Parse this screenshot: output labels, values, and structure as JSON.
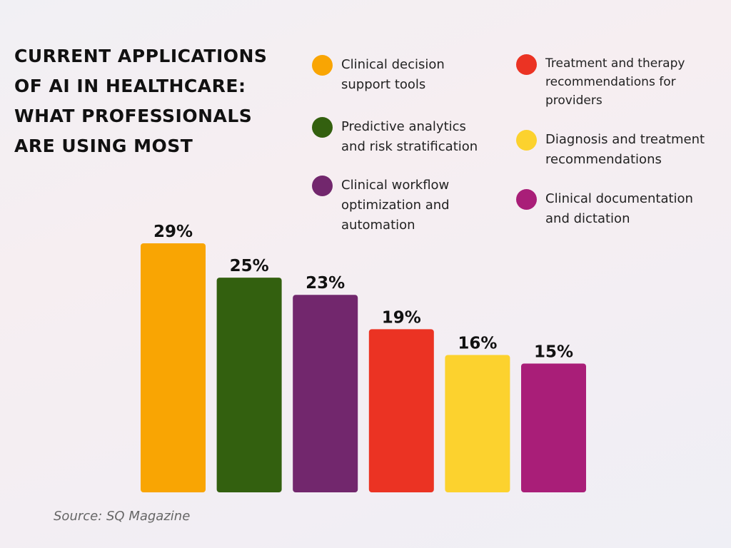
{
  "title": "Current Applications of AI in Healthcare: What Professionals Are Using Most",
  "source": "Source: SQ Magazine",
  "legend": [
    {
      "label": "Clinical decision\nsupport tools",
      "color": "#F9A503"
    },
    {
      "label": "Predictive analytics\nand risk stratification",
      "color": "#33600F"
    },
    {
      "label": "Clinical workflow\noptimization and\nautomation",
      "color": "#72276D"
    },
    {
      "label": "Treatment and therapy\nrecommendations for\nproviders",
      "color": "#EB3323"
    },
    {
      "label": "Diagnosis and treatment\nrecommendations",
      "color": "#FCD22E"
    },
    {
      "label": "Clinical documentation\nand dictation",
      "color": "#A91E78"
    }
  ],
  "chart_data": {
    "type": "bar",
    "title": "Current Applications of AI in Healthcare: What Professionals Are Using Most",
    "categories": [
      "Clinical decision support tools",
      "Predictive analytics and risk stratification",
      "Clinical workflow optimization and automation",
      "Treatment and therapy recommendations for providers",
      "Diagnosis and treatment recommendations",
      "Clinical documentation and dictation"
    ],
    "values": [
      29,
      25,
      23,
      19,
      16,
      15
    ],
    "value_labels": [
      "29%",
      "25%",
      "23%",
      "19%",
      "16%",
      "15%"
    ],
    "colors": [
      "#F9A503",
      "#33600F",
      "#72276D",
      "#EB3323",
      "#FCD22E",
      "#A91E78"
    ],
    "unit": "%",
    "ylim": [
      0,
      29
    ],
    "grid": false,
    "legend_position": "top-right",
    "xlabel": "",
    "ylabel": ""
  }
}
